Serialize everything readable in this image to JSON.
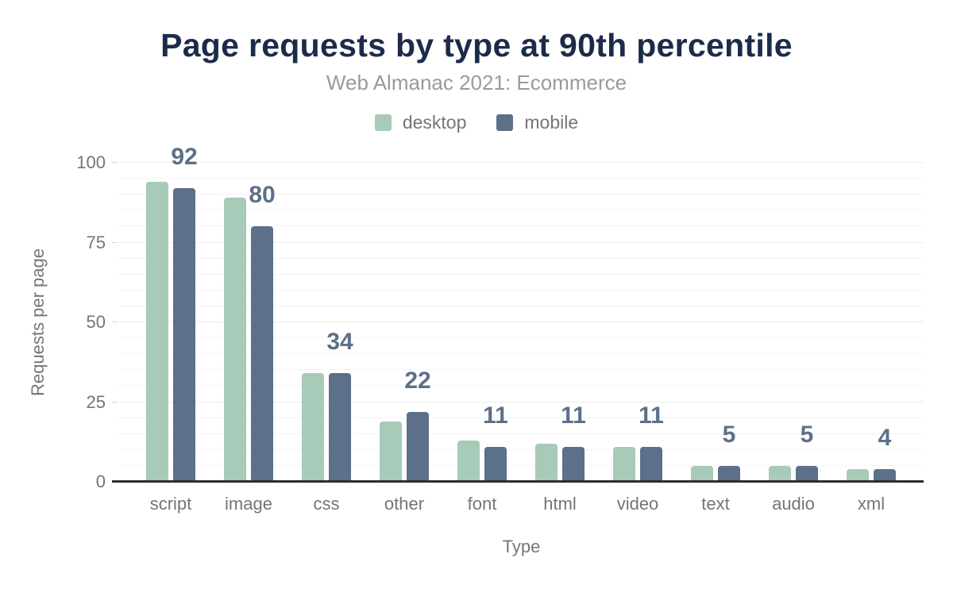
{
  "colors": {
    "background": "#ffffff",
    "title": "#1c2b4a",
    "subtitle": "#9a9a9a",
    "desktop_bar": "#a8cab8",
    "mobile_bar": "#5d7089",
    "value_label": "#5d7089",
    "axis_text": "#757575",
    "gridline": "#f4f4f4",
    "axis_line": "#2e2e2e"
  },
  "chart_data": {
    "type": "bar",
    "title": "Page requests by type at 90th percentile",
    "subtitle": "Web Almanac 2021: Ecommerce",
    "xlabel": "Type",
    "ylabel": "Requests per page",
    "categories": [
      "script",
      "image",
      "css",
      "other",
      "font",
      "html",
      "video",
      "text",
      "audio",
      "xml"
    ],
    "series": [
      {
        "name": "desktop",
        "color": "#a8cab8",
        "values": [
          94,
          89,
          34,
          19,
          13,
          12,
          11,
          5,
          5,
          4
        ]
      },
      {
        "name": "mobile",
        "color": "#5d7089",
        "values": [
          92,
          80,
          34,
          22,
          11,
          11,
          11,
          5,
          5,
          4
        ]
      }
    ],
    "data_labels": {
      "shown_for_series": "mobile",
      "values": [
        92,
        80,
        34,
        22,
        11,
        11,
        11,
        5,
        5,
        4
      ]
    },
    "ylim": [
      0,
      100
    ],
    "yticks": [
      0,
      25,
      50,
      75,
      100
    ],
    "minor_grid_step": 5,
    "grid": true,
    "legend_position": "top",
    "legend_labels": [
      "desktop",
      "mobile"
    ]
  }
}
